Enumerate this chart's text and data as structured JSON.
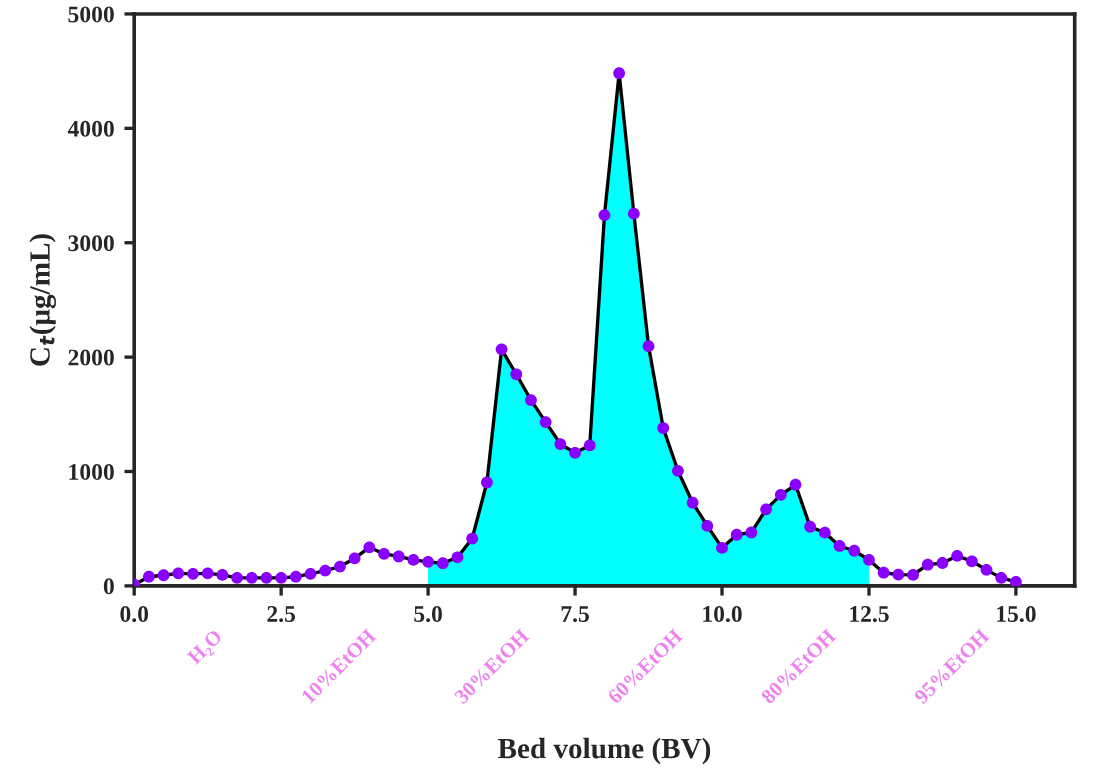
{
  "chart_data": {
    "type": "line",
    "xlabel": "Bed volume (BV)",
    "ylabel": "C$_{t}$(μg/mL)",
    "xlim": [
      0,
      16
    ],
    "xticks": [
      {
        "value": 0,
        "label": "0.0"
      },
      2.5,
      {
        "value": 5,
        "label": "5.0"
      },
      7.5,
      {
        "value": 10,
        "label": "10.0"
      },
      12.5,
      {
        "value": 15,
        "label": "15.0"
      }
    ],
    "ylim": [
      0,
      5000
    ],
    "yticks": [
      0,
      1000,
      2000,
      3000,
      4000,
      5000
    ],
    "grid": false,
    "legend": false,
    "line_style": "solid",
    "series": [
      {
        "type": "area",
        "color": "#00ffff",
        "x": [
          5.0,
          5.25,
          5.5,
          5.75,
          6.0,
          6.25,
          6.5,
          6.75,
          7.0,
          7.25,
          7.5,
          7.75,
          8.0,
          8.25,
          8.5,
          8.75,
          9.0,
          9.25,
          9.5,
          9.75,
          10.0,
          10.25,
          10.5,
          10.75,
          11.0,
          11.25,
          11.5,
          11.75,
          12.0,
          12.25,
          12.5
        ],
        "values": [
          210,
          198,
          250,
          414,
          904,
          2068,
          1850,
          1624,
          1432,
          1240,
          1163,
          1228,
          3242,
          4482,
          3254,
          2096,
          1380,
          1006,
          727,
          524,
          332,
          447,
          467,
          669,
          796,
          884,
          517,
          465,
          349,
          307,
          227
        ]
      },
      {
        "color": "#000000",
        "x": [
          0,
          0.25,
          0.5,
          0.75,
          1.0,
          1.25,
          1.5,
          1.75,
          2.0,
          2.25,
          2.5,
          2.75,
          3.0,
          3.25,
          3.5,
          3.75,
          4.0,
          4.25,
          4.5,
          4.75,
          5.0,
          5.25,
          5.5,
          5.75,
          6.0,
          6.25,
          6.5,
          6.75,
          7.0,
          7.25,
          7.5,
          7.75,
          8.0,
          8.25,
          8.5,
          8.75,
          9.0,
          9.25,
          9.5,
          9.75,
          10.0,
          10.25,
          10.5,
          10.75,
          11.0,
          11.25,
          11.5,
          11.75,
          12.0,
          12.25,
          12.5,
          12.75,
          13.0,
          13.25,
          13.5,
          13.75,
          14.0,
          14.25,
          14.5,
          14.75,
          15.0
        ],
        "values": [
          10,
          80,
          93,
          110,
          105,
          110,
          96,
          70,
          70,
          70,
          70,
          80,
          105,
          134,
          169,
          240,
          337,
          280,
          257,
          227,
          210,
          198,
          250,
          414,
          904,
          2068,
          1850,
          1624,
          1432,
          1240,
          1163,
          1228,
          3242,
          4482,
          3254,
          2096,
          1380,
          1006,
          727,
          524,
          332,
          447,
          467,
          669,
          796,
          884,
          517,
          465,
          349,
          307,
          227,
          115,
          98,
          96,
          185,
          200,
          262,
          215,
          140,
          70,
          35
        ]
      },
      {
        "type": "scatter",
        "marker": "circle",
        "color": "#8a00ff",
        "x": [
          0,
          0.25,
          0.5,
          0.75,
          1.0,
          1.25,
          1.5,
          1.75,
          2.0,
          2.25,
          2.5,
          2.75,
          3.0,
          3.25,
          3.5,
          3.75,
          4.0,
          4.25,
          4.5,
          4.75,
          5.0,
          5.25,
          5.5,
          5.75,
          6.0,
          6.25,
          6.5,
          6.75,
          7.0,
          7.25,
          7.5,
          7.75,
          8.0,
          8.25,
          8.5,
          8.75,
          9.0,
          9.25,
          9.5,
          9.75,
          10.0,
          10.25,
          10.5,
          10.75,
          11.0,
          11.25,
          11.5,
          11.75,
          12.0,
          12.25,
          12.5,
          12.75,
          13.0,
          13.25,
          13.5,
          13.75,
          14.0,
          14.25,
          14.5,
          14.75,
          15.0
        ],
        "values": [
          10,
          80,
          93,
          110,
          105,
          110,
          96,
          70,
          70,
          70,
          70,
          80,
          105,
          134,
          169,
          240,
          337,
          280,
          257,
          227,
          210,
          198,
          250,
          414,
          904,
          2068,
          1850,
          1624,
          1432,
          1240,
          1163,
          1228,
          3242,
          4482,
          3254,
          2096,
          1380,
          1006,
          727,
          524,
          332,
          447,
          467,
          669,
          796,
          884,
          517,
          465,
          349,
          307,
          227,
          115,
          98,
          96,
          185,
          200,
          262,
          215,
          140,
          70,
          35
        ]
      }
    ],
    "annotations": [
      "H₂O",
      "10%EtOH",
      "30%EtOH",
      "60%EtOH",
      "80%EtOH",
      "95%EtOH"
    ]
  }
}
